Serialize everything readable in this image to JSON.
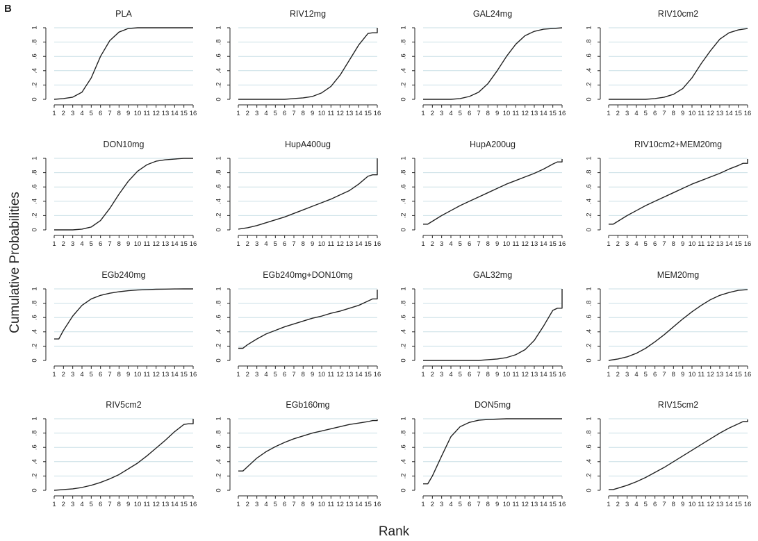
{
  "figure": {
    "panel_letter": "B",
    "ylabel": "Cumulative Probabilities",
    "xlabel": "Rank",
    "line_color": "#222222",
    "grid_color": "#c9dfe6"
  },
  "chart_data": [
    {
      "type": "line",
      "title": "PLA",
      "xlabel": "",
      "ylabel": "",
      "xlim": [
        1,
        16
      ],
      "ylim": [
        0,
        1
      ],
      "grid": true,
      "x_ticks": [
        "1",
        "2",
        "3",
        "4",
        "5",
        "6",
        "7",
        "8",
        "9",
        "10",
        "11",
        "12",
        "13",
        "14",
        "15",
        "16"
      ],
      "y_ticks": [
        "0",
        ".2",
        ".4",
        ".6",
        ".8",
        "1"
      ],
      "x": [
        1,
        2,
        3,
        4,
        5,
        6,
        7,
        8,
        9,
        10,
        11,
        12,
        13,
        14,
        15,
        16
      ],
      "values": [
        0,
        0.01,
        0.03,
        0.1,
        0.3,
        0.6,
        0.82,
        0.94,
        0.99,
        1,
        1,
        1,
        1,
        1,
        1,
        1
      ]
    },
    {
      "type": "line",
      "title": "RIV12mg",
      "xlabel": "",
      "ylabel": "",
      "xlim": [
        1,
        16
      ],
      "ylim": [
        0,
        1
      ],
      "grid": true,
      "x_ticks": [
        "1",
        "2",
        "3",
        "4",
        "5",
        "6",
        "7",
        "8",
        "9",
        "10",
        "11",
        "12",
        "13",
        "14",
        "15",
        "16"
      ],
      "y_ticks": [
        "0",
        ".2",
        ".4",
        ".6",
        ".8",
        "1"
      ],
      "x": [
        1,
        2,
        3,
        4,
        5,
        6,
        7,
        8,
        9,
        10,
        11,
        12,
        13,
        14,
        15,
        15.5,
        16,
        16
      ],
      "values": [
        0,
        0,
        0,
        0,
        0,
        0,
        0.01,
        0.02,
        0.04,
        0.09,
        0.18,
        0.34,
        0.55,
        0.76,
        0.92,
        0.93,
        0.93,
        1
      ]
    },
    {
      "type": "line",
      "title": "GAL24mg",
      "xlabel": "",
      "ylabel": "",
      "xlim": [
        1,
        16
      ],
      "ylim": [
        0,
        1
      ],
      "grid": true,
      "x_ticks": [
        "1",
        "2",
        "3",
        "4",
        "5",
        "6",
        "7",
        "8",
        "9",
        "10",
        "11",
        "12",
        "13",
        "14",
        "15",
        "16"
      ],
      "y_ticks": [
        "0",
        ".2",
        ".4",
        ".6",
        ".8",
        "1"
      ],
      "x": [
        1,
        2,
        3,
        4,
        5,
        6,
        7,
        8,
        9,
        10,
        11,
        12,
        13,
        14,
        15,
        16
      ],
      "values": [
        0,
        0,
        0,
        0,
        0.01,
        0.04,
        0.1,
        0.22,
        0.4,
        0.6,
        0.77,
        0.89,
        0.95,
        0.98,
        0.99,
        1
      ]
    },
    {
      "type": "line",
      "title": "RIV10cm2",
      "xlabel": "",
      "ylabel": "",
      "xlim": [
        1,
        16
      ],
      "ylim": [
        0,
        1
      ],
      "grid": true,
      "x_ticks": [
        "1",
        "2",
        "3",
        "4",
        "5",
        "6",
        "7",
        "8",
        "9",
        "10",
        "11",
        "12",
        "13",
        "14",
        "15",
        "16"
      ],
      "y_ticks": [
        "0",
        ".2",
        ".4",
        ".6",
        ".8",
        "1"
      ],
      "x": [
        1,
        2,
        3,
        4,
        5,
        6,
        7,
        8,
        9,
        10,
        11,
        12,
        13,
        14,
        15,
        16
      ],
      "values": [
        0,
        0,
        0,
        0,
        0,
        0.01,
        0.03,
        0.07,
        0.15,
        0.3,
        0.5,
        0.68,
        0.84,
        0.93,
        0.97,
        0.99
      ]
    },
    {
      "type": "line",
      "title": "DON10mg",
      "xlabel": "",
      "ylabel": "",
      "xlim": [
        1,
        16
      ],
      "ylim": [
        0,
        1
      ],
      "grid": true,
      "x_ticks": [
        "1",
        "2",
        "3",
        "4",
        "5",
        "6",
        "7",
        "8",
        "9",
        "10",
        "11",
        "12",
        "13",
        "14",
        "15",
        "16"
      ],
      "y_ticks": [
        "0",
        ".2",
        ".4",
        ".6",
        ".8",
        "1"
      ],
      "x": [
        1,
        2,
        3,
        4,
        5,
        6,
        7,
        8,
        9,
        10,
        11,
        12,
        13,
        14,
        15,
        16
      ],
      "values": [
        0,
        0,
        0,
        0.01,
        0.04,
        0.13,
        0.3,
        0.5,
        0.68,
        0.82,
        0.91,
        0.96,
        0.98,
        0.99,
        1,
        1
      ]
    },
    {
      "type": "line",
      "title": "HupA400ug",
      "xlabel": "",
      "ylabel": "",
      "xlim": [
        1,
        16
      ],
      "ylim": [
        0,
        1
      ],
      "grid": true,
      "x_ticks": [
        "1",
        "2",
        "3",
        "4",
        "5",
        "6",
        "7",
        "8",
        "9",
        "10",
        "11",
        "12",
        "13",
        "14",
        "15",
        "16"
      ],
      "y_ticks": [
        "0",
        ".2",
        ".4",
        ".6",
        ".8",
        "1"
      ],
      "x": [
        1,
        2,
        3,
        4,
        5,
        6,
        7,
        8,
        9,
        10,
        11,
        12,
        13,
        14,
        15,
        15.5,
        16,
        16
      ],
      "values": [
        0.01,
        0.03,
        0.06,
        0.1,
        0.14,
        0.18,
        0.23,
        0.28,
        0.33,
        0.38,
        0.43,
        0.49,
        0.55,
        0.64,
        0.75,
        0.77,
        0.77,
        1
      ]
    },
    {
      "type": "line",
      "title": "HupA200ug",
      "xlabel": "",
      "ylabel": "",
      "xlim": [
        1,
        16
      ],
      "ylim": [
        0,
        1
      ],
      "grid": true,
      "x_ticks": [
        "1",
        "2",
        "3",
        "4",
        "5",
        "6",
        "7",
        "8",
        "9",
        "10",
        "11",
        "12",
        "13",
        "14",
        "15",
        "16"
      ],
      "y_ticks": [
        "0",
        ".2",
        ".4",
        ".6",
        ".8",
        "1"
      ],
      "x": [
        1,
        1.5,
        2,
        3,
        4,
        5,
        6,
        7,
        8,
        9,
        10,
        11,
        12,
        13,
        14,
        15,
        15.5,
        16,
        16
      ],
      "values": [
        0.08,
        0.08,
        0.12,
        0.2,
        0.27,
        0.34,
        0.4,
        0.46,
        0.52,
        0.58,
        0.64,
        0.69,
        0.74,
        0.79,
        0.85,
        0.92,
        0.95,
        0.95,
        0.99
      ]
    },
    {
      "type": "line",
      "title": "RIV10cm2+MEM20mg",
      "xlabel": "",
      "ylabel": "",
      "xlim": [
        1,
        16
      ],
      "ylim": [
        0,
        1
      ],
      "grid": true,
      "x_ticks": [
        "1",
        "2",
        "3",
        "4",
        "5",
        "6",
        "7",
        "8",
        "9",
        "10",
        "11",
        "12",
        "13",
        "14",
        "15",
        "16"
      ],
      "y_ticks": [
        "0",
        ".2",
        ".4",
        ".6",
        ".8",
        "1"
      ],
      "x": [
        1,
        1.5,
        2,
        3,
        4,
        5,
        6,
        7,
        8,
        9,
        10,
        11,
        12,
        13,
        14,
        15,
        15.5,
        16,
        16
      ],
      "values": [
        0.08,
        0.08,
        0.12,
        0.2,
        0.27,
        0.34,
        0.4,
        0.46,
        0.52,
        0.58,
        0.64,
        0.69,
        0.74,
        0.79,
        0.85,
        0.9,
        0.93,
        0.93,
        0.99
      ]
    },
    {
      "type": "line",
      "title": "EGb240mg",
      "xlabel": "",
      "ylabel": "",
      "xlim": [
        1,
        16
      ],
      "ylim": [
        0,
        1
      ],
      "grid": true,
      "x_ticks": [
        "1",
        "2",
        "3",
        "4",
        "5",
        "6",
        "7",
        "8",
        "9",
        "10",
        "11",
        "12",
        "13",
        "14",
        "15",
        "16"
      ],
      "y_ticks": [
        "0",
        ".2",
        ".4",
        ".6",
        ".8",
        "1"
      ],
      "x": [
        1,
        1.5,
        2,
        3,
        4,
        5,
        6,
        7,
        8,
        9,
        10,
        11,
        12,
        13,
        14,
        15,
        16
      ],
      "values": [
        0.3,
        0.3,
        0.42,
        0.62,
        0.77,
        0.86,
        0.91,
        0.94,
        0.96,
        0.975,
        0.985,
        0.99,
        0.995,
        0.997,
        0.999,
        1,
        1
      ]
    },
    {
      "type": "line",
      "title": "EGb240mg+DON10mg",
      "xlabel": "",
      "ylabel": "",
      "xlim": [
        1,
        16
      ],
      "ylim": [
        0,
        1
      ],
      "grid": true,
      "x_ticks": [
        "1",
        "2",
        "3",
        "4",
        "5",
        "6",
        "7",
        "8",
        "9",
        "10",
        "11",
        "12",
        "13",
        "14",
        "15",
        "16"
      ],
      "y_ticks": [
        "0",
        ".2",
        ".4",
        ".6",
        ".8",
        "1"
      ],
      "x": [
        1,
        1.5,
        2,
        3,
        4,
        5,
        6,
        7,
        8,
        9,
        10,
        11,
        12,
        13,
        14,
        15,
        15.5,
        16,
        16
      ],
      "values": [
        0.17,
        0.17,
        0.22,
        0.3,
        0.37,
        0.42,
        0.47,
        0.51,
        0.55,
        0.59,
        0.62,
        0.66,
        0.69,
        0.73,
        0.77,
        0.83,
        0.86,
        0.86,
        0.99
      ]
    },
    {
      "type": "line",
      "title": "GAL32mg",
      "xlabel": "",
      "ylabel": "",
      "xlim": [
        1,
        16
      ],
      "ylim": [
        0,
        1
      ],
      "grid": true,
      "x_ticks": [
        "1",
        "2",
        "3",
        "4",
        "5",
        "6",
        "7",
        "8",
        "9",
        "10",
        "11",
        "12",
        "13",
        "14",
        "15",
        "16"
      ],
      "y_ticks": [
        "0",
        ".2",
        ".4",
        ".6",
        ".8",
        "1"
      ],
      "x": [
        1,
        2,
        3,
        4,
        5,
        6,
        7,
        8,
        9,
        10,
        11,
        12,
        13,
        14,
        15,
        15.5,
        16,
        16
      ],
      "values": [
        0,
        0,
        0,
        0,
        0,
        0,
        0,
        0.01,
        0.02,
        0.04,
        0.08,
        0.15,
        0.28,
        0.48,
        0.7,
        0.73,
        0.73,
        1
      ]
    },
    {
      "type": "line",
      "title": "MEM20mg",
      "xlabel": "",
      "ylabel": "",
      "xlim": [
        1,
        16
      ],
      "ylim": [
        0,
        1
      ],
      "grid": true,
      "x_ticks": [
        "1",
        "2",
        "3",
        "4",
        "5",
        "6",
        "7",
        "8",
        "9",
        "10",
        "11",
        "12",
        "13",
        "14",
        "15",
        "16"
      ],
      "y_ticks": [
        "0",
        ".2",
        ".4",
        ".6",
        ".8",
        "1"
      ],
      "x": [
        1,
        2,
        3,
        4,
        5,
        6,
        7,
        8,
        9,
        10,
        11,
        12,
        13,
        14,
        15,
        16
      ],
      "values": [
        0,
        0.02,
        0.05,
        0.1,
        0.17,
        0.26,
        0.36,
        0.47,
        0.58,
        0.68,
        0.77,
        0.85,
        0.91,
        0.95,
        0.98,
        0.99
      ]
    },
    {
      "type": "line",
      "title": "RIV5cm2",
      "xlabel": "",
      "ylabel": "",
      "xlim": [
        1,
        16
      ],
      "ylim": [
        0,
        1
      ],
      "grid": true,
      "x_ticks": [
        "1",
        "2",
        "3",
        "4",
        "5",
        "6",
        "7",
        "8",
        "9",
        "10",
        "11",
        "12",
        "13",
        "14",
        "15",
        "16"
      ],
      "y_ticks": [
        "0",
        ".2",
        ".4",
        ".6",
        ".8",
        "1"
      ],
      "x": [
        1,
        2,
        3,
        4,
        5,
        6,
        7,
        8,
        9,
        10,
        11,
        12,
        13,
        14,
        15,
        15.5,
        16,
        16
      ],
      "values": [
        0,
        0.01,
        0.02,
        0.04,
        0.07,
        0.11,
        0.16,
        0.22,
        0.3,
        0.38,
        0.48,
        0.59,
        0.7,
        0.82,
        0.92,
        0.93,
        0.93,
        1
      ]
    },
    {
      "type": "line",
      "title": "EGb160mg",
      "xlabel": "",
      "ylabel": "",
      "xlim": [
        1,
        16
      ],
      "ylim": [
        0,
        1
      ],
      "grid": true,
      "x_ticks": [
        "1",
        "2",
        "3",
        "4",
        "5",
        "6",
        "7",
        "8",
        "9",
        "10",
        "11",
        "12",
        "13",
        "14",
        "15",
        "16"
      ],
      "y_ticks": [
        "0",
        ".2",
        ".4",
        ".6",
        ".8",
        "1"
      ],
      "x": [
        1,
        1.5,
        2,
        3,
        4,
        5,
        6,
        7,
        8,
        9,
        10,
        11,
        12,
        13,
        14,
        15,
        15.5,
        16,
        16
      ],
      "values": [
        0.27,
        0.27,
        0.33,
        0.45,
        0.54,
        0.61,
        0.67,
        0.72,
        0.76,
        0.8,
        0.83,
        0.86,
        0.89,
        0.92,
        0.94,
        0.96,
        0.975,
        0.975,
        0.99
      ]
    },
    {
      "type": "line",
      "title": "DON5mg",
      "xlabel": "",
      "ylabel": "",
      "xlim": [
        1,
        16
      ],
      "ylim": [
        0,
        1
      ],
      "grid": true,
      "x_ticks": [
        "1",
        "2",
        "3",
        "4",
        "5",
        "6",
        "7",
        "8",
        "9",
        "10",
        "11",
        "12",
        "13",
        "14",
        "15",
        "16"
      ],
      "y_ticks": [
        "0",
        ".2",
        ".4",
        ".6",
        ".8",
        "1"
      ],
      "x": [
        1,
        1.5,
        2,
        3,
        4,
        5,
        6,
        7,
        8,
        9,
        10,
        11,
        12,
        13,
        14,
        15,
        16
      ],
      "values": [
        0.09,
        0.09,
        0.2,
        0.48,
        0.75,
        0.89,
        0.95,
        0.98,
        0.99,
        0.995,
        1,
        1,
        1,
        1,
        1,
        1,
        1
      ]
    },
    {
      "type": "line",
      "title": "RIV15cm2",
      "xlabel": "",
      "ylabel": "",
      "xlim": [
        1,
        16
      ],
      "ylim": [
        0,
        1
      ],
      "grid": true,
      "x_ticks": [
        "1",
        "2",
        "3",
        "4",
        "5",
        "6",
        "7",
        "8",
        "9",
        "10",
        "11",
        "12",
        "13",
        "14",
        "15",
        "16"
      ],
      "y_ticks": [
        "0",
        ".2",
        ".4",
        ".6",
        ".8",
        "1"
      ],
      "x": [
        1,
        1.5,
        2,
        3,
        4,
        5,
        6,
        7,
        8,
        9,
        10,
        11,
        12,
        13,
        14,
        15,
        15.5,
        16,
        16
      ],
      "values": [
        0.01,
        0.01,
        0.03,
        0.07,
        0.12,
        0.18,
        0.25,
        0.32,
        0.4,
        0.48,
        0.56,
        0.64,
        0.72,
        0.8,
        0.87,
        0.93,
        0.96,
        0.96,
        0.99
      ]
    }
  ]
}
